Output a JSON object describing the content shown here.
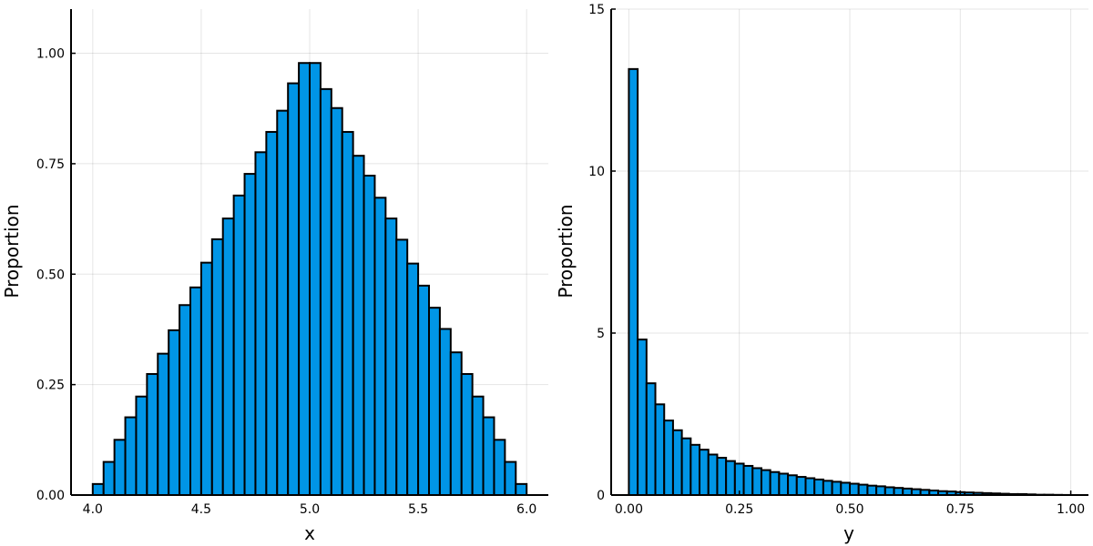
{
  "chart_data": [
    {
      "type": "bar",
      "xlabel": "x",
      "ylabel": "Proportion",
      "xlim": [
        3.9,
        6.1
      ],
      "ylim": [
        0,
        1.1
      ],
      "xticks": [
        4.0,
        4.5,
        5.0,
        5.5,
        6.0
      ],
      "xtick_labels": [
        "4.0",
        "4.5",
        "5.0",
        "5.5",
        "6.0"
      ],
      "yticks": [
        0.0,
        0.25,
        0.5,
        0.75,
        1.0
      ],
      "ytick_labels": [
        "0.00",
        "0.25",
        "0.50",
        "0.75",
        "1.00"
      ],
      "grid": true,
      "bar_color": "#0095e6",
      "bin_width": 0.05,
      "bin_starts": [
        4.0,
        4.05,
        4.1,
        4.15,
        4.2,
        4.25,
        4.3,
        4.35,
        4.4,
        4.45,
        4.5,
        4.55,
        4.6,
        4.65,
        4.7,
        4.75,
        4.8,
        4.85,
        4.9,
        4.95,
        5.0,
        5.05,
        5.1,
        5.15,
        5.2,
        5.25,
        5.3,
        5.35,
        5.4,
        5.45,
        5.5,
        5.55,
        5.6,
        5.65,
        5.7,
        5.75,
        5.8,
        5.85,
        5.9,
        5.95
      ],
      "values": [
        0.025,
        0.075,
        0.125,
        0.176,
        0.223,
        0.274,
        0.32,
        0.373,
        0.43,
        0.47,
        0.526,
        0.579,
        0.626,
        0.678,
        0.727,
        0.776,
        0.822,
        0.87,
        0.932,
        0.978,
        0.978,
        0.919,
        0.876,
        0.822,
        0.768,
        0.723,
        0.673,
        0.626,
        0.578,
        0.524,
        0.474,
        0.424,
        0.376,
        0.323,
        0.274,
        0.223,
        0.176,
        0.125,
        0.075,
        0.025
      ]
    },
    {
      "type": "bar",
      "xlabel": "y",
      "ylabel": "Proportion",
      "xlim": [
        -0.04,
        1.04
      ],
      "ylim": [
        0,
        15
      ],
      "xticks": [
        0.0,
        0.25,
        0.5,
        0.75,
        1.0
      ],
      "xtick_labels": [
        "0.00",
        "0.25",
        "0.50",
        "0.75",
        "1.00"
      ],
      "yticks": [
        0,
        5,
        10,
        15
      ],
      "ytick_labels": [
        "0",
        "5",
        "10",
        "15"
      ],
      "grid": true,
      "bar_color": "#0095e6",
      "bin_width": 0.02,
      "bin_starts": [
        0.0,
        0.02,
        0.04,
        0.06,
        0.08,
        0.1,
        0.12,
        0.14,
        0.16,
        0.18,
        0.2,
        0.22,
        0.24,
        0.26,
        0.28,
        0.3,
        0.32,
        0.34,
        0.36,
        0.38,
        0.4,
        0.42,
        0.44,
        0.46,
        0.48,
        0.5,
        0.52,
        0.54,
        0.56,
        0.58,
        0.6,
        0.62,
        0.64,
        0.66,
        0.68,
        0.7,
        0.72,
        0.74,
        0.76,
        0.78,
        0.8,
        0.82,
        0.84,
        0.86,
        0.88,
        0.9,
        0.92,
        0.94,
        0.96,
        0.98
      ],
      "values": [
        13.15,
        4.8,
        3.45,
        2.8,
        2.3,
        2.0,
        1.75,
        1.55,
        1.4,
        1.25,
        1.15,
        1.05,
        0.97,
        0.9,
        0.83,
        0.77,
        0.71,
        0.66,
        0.61,
        0.56,
        0.52,
        0.48,
        0.44,
        0.41,
        0.38,
        0.35,
        0.32,
        0.29,
        0.27,
        0.24,
        0.22,
        0.2,
        0.18,
        0.16,
        0.14,
        0.12,
        0.11,
        0.09,
        0.08,
        0.07,
        0.06,
        0.05,
        0.04,
        0.03,
        0.03,
        0.02,
        0.01,
        0.01,
        0.005,
        0.002
      ]
    }
  ]
}
